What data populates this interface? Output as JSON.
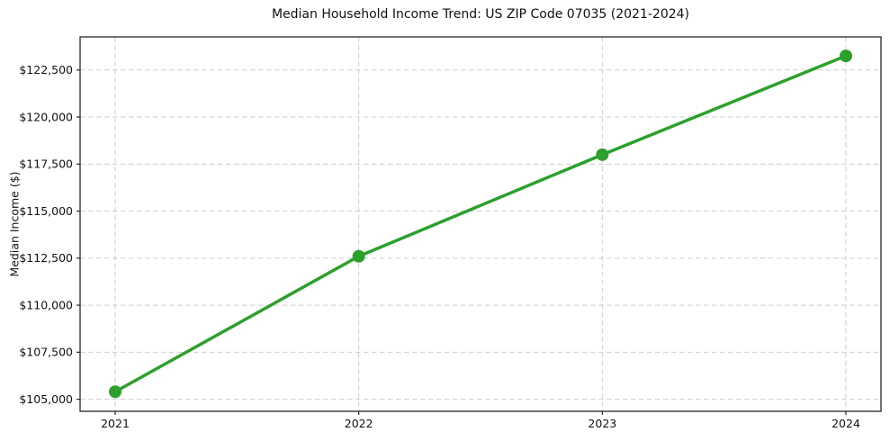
{
  "figure": {
    "background": "#ffffff",
    "text_color": "#111111",
    "spine_color": "#262626",
    "grid_color": "#cdcdcd"
  },
  "chart_data": {
    "type": "line",
    "title": "Median Household Income Trend: US ZIP Code 07035 (2021-2024)",
    "xlabel": "",
    "ylabel": "Median Income ($)",
    "x": [
      2021,
      2022,
      2023,
      2024
    ],
    "x_tick_labels": [
      "2021",
      "2022",
      "2023",
      "2024"
    ],
    "series": [
      {
        "values": [
          105400,
          112600,
          118000,
          123250
        ],
        "color": "#2ca02c",
        "marker": "circle",
        "line_style": "solid"
      }
    ],
    "y_ticks": [
      105000,
      107500,
      110000,
      112500,
      115000,
      117500,
      120000,
      122500
    ],
    "y_tick_labels": [
      "$105,000",
      "$107,500",
      "$110,000",
      "$112,500",
      "$115,000",
      "$117,500",
      "$120,000",
      "$122,500"
    ],
    "ylim": [
      104360,
      124260
    ],
    "grid": {
      "show": true,
      "style": "dashed"
    },
    "legend": {
      "show": false
    }
  }
}
